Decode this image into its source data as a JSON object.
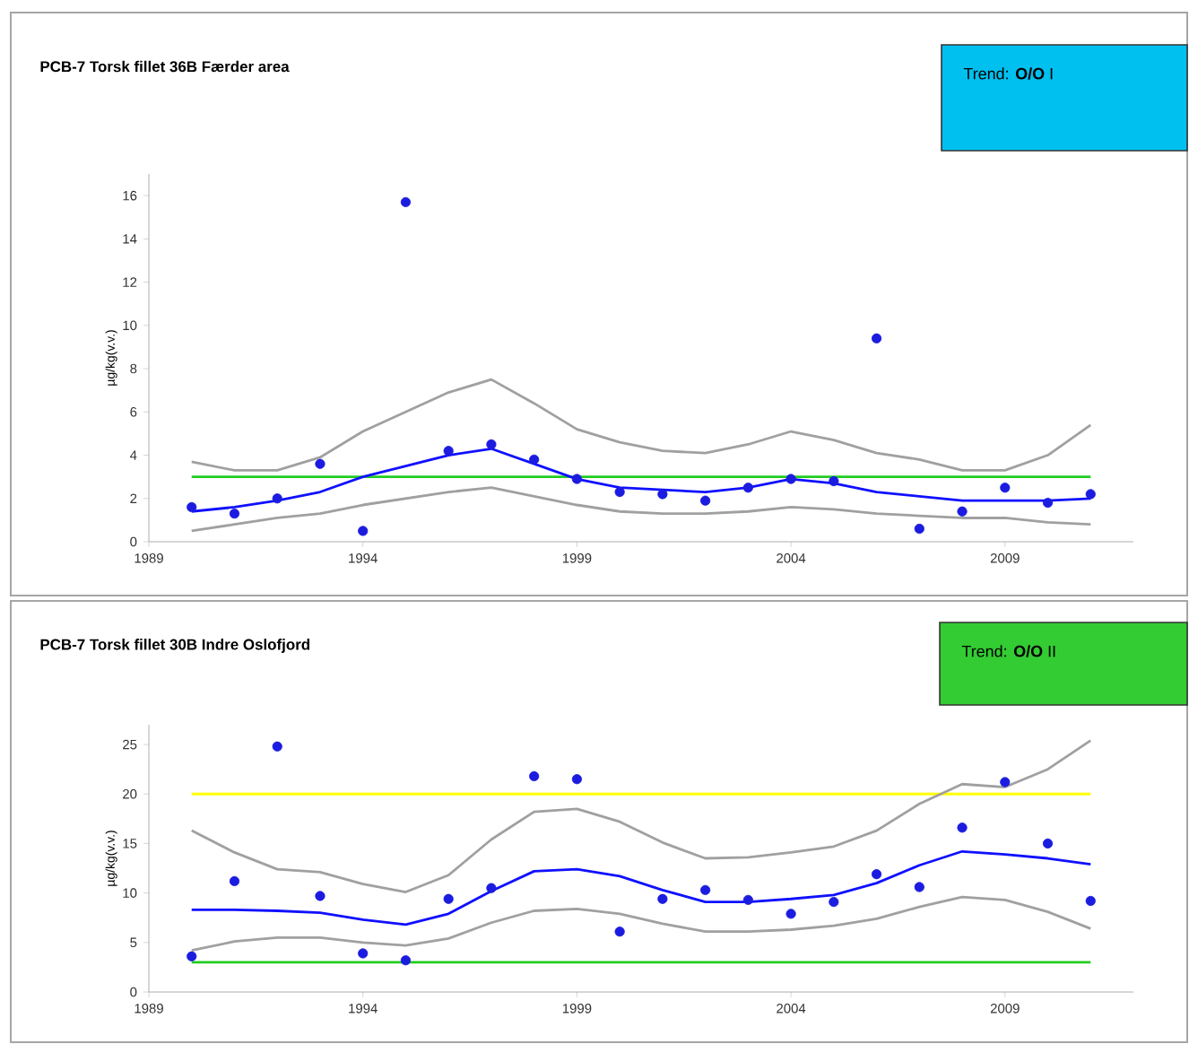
{
  "chart_data": [
    {
      "type": "line",
      "title": "PCB-7 Torsk fillet 36B Færder area",
      "ylabel": "µg/kg(v.v.)",
      "annotations": [
        "Trend: **O/O**  I"
      ],
      "x": [
        1990,
        1991,
        1992,
        1993,
        1994,
        1995,
        1996,
        1997,
        1998,
        1999,
        2000,
        2001,
        2002,
        2003,
        2004,
        2005,
        2006,
        2007,
        2008,
        2009,
        2010,
        2011
      ],
      "xlim": [
        1989,
        2012
      ],
      "xticks": [
        1989,
        1994,
        1999,
        2004,
        2009
      ],
      "ylim": [
        0,
        17
      ],
      "yticks": [
        0,
        2,
        4,
        6,
        8,
        10,
        12,
        14,
        16
      ],
      "grid": false,
      "ref_lines": [
        {
          "axis": "y",
          "value": 3,
          "color": "#22cc22"
        }
      ],
      "series": [
        {
          "color": "#a0a0a0",
          "values": [
            3.7,
            3.3,
            3.3,
            3.9,
            5.1,
            6.0,
            6.9,
            7.5,
            6.4,
            5.2,
            4.6,
            4.2,
            4.1,
            4.5,
            5.1,
            4.7,
            4.1,
            3.8,
            3.3,
            3.3,
            4.0,
            5.4
          ]
        },
        {
          "color": "#a0a0a0",
          "values": [
            0.5,
            0.8,
            1.1,
            1.3,
            1.7,
            2.0,
            2.3,
            2.5,
            2.1,
            1.7,
            1.4,
            1.3,
            1.3,
            1.4,
            1.6,
            1.5,
            1.3,
            1.2,
            1.1,
            1.1,
            0.9,
            0.8
          ]
        },
        {
          "color": "#1010ff",
          "values": [
            1.4,
            1.6,
            1.9,
            2.3,
            3.0,
            3.5,
            4.0,
            4.3,
            3.6,
            2.9,
            2.5,
            2.4,
            2.3,
            2.5,
            2.9,
            2.7,
            2.3,
            2.1,
            1.9,
            1.9,
            1.9,
            2.0
          ]
        },
        {
          "type": "scatter",
          "marker": "circle",
          "color": "#1c1ce0",
          "values": [
            1.6,
            1.3,
            2.0,
            3.6,
            0.5,
            15.7,
            4.2,
            4.5,
            3.8,
            2.9,
            2.3,
            2.2,
            1.9,
            2.5,
            2.9,
            2.8,
            9.4,
            0.6,
            1.4,
            2.5,
            1.8,
            2.2
          ]
        }
      ]
    },
    {
      "type": "line",
      "title": "PCB-7 Torsk fillet 30B Indre Oslofjord",
      "ylabel": "µg/kg(v.v.)",
      "annotations": [
        "Trend: **O/O**  II"
      ],
      "x": [
        1990,
        1991,
        1992,
        1993,
        1994,
        1995,
        1996,
        1997,
        1998,
        1999,
        2000,
        2001,
        2002,
        2003,
        2004,
        2005,
        2006,
        2007,
        2008,
        2009,
        2010,
        2011
      ],
      "xlim": [
        1989,
        2012
      ],
      "xticks": [
        1989,
        1994,
        1999,
        2004,
        2009
      ],
      "ylim": [
        0,
        27
      ],
      "yticks": [
        0,
        5,
        10,
        15,
        20,
        25
      ],
      "grid": false,
      "ref_lines": [
        {
          "axis": "y",
          "value": 20,
          "color": "#ffff00"
        },
        {
          "axis": "y",
          "value": 3,
          "color": "#22cc22"
        }
      ],
      "series": [
        {
          "color": "#a0a0a0",
          "values": [
            16.3,
            14.1,
            12.4,
            12.1,
            10.9,
            10.1,
            11.8,
            15.4,
            18.2,
            18.5,
            17.2,
            15.1,
            13.5,
            13.6,
            14.1,
            14.7,
            16.3,
            19.0,
            21.0,
            20.7,
            22.5,
            25.4
          ]
        },
        {
          "color": "#a0a0a0",
          "values": [
            4.2,
            5.1,
            5.5,
            5.5,
            5.0,
            4.7,
            5.4,
            7.0,
            8.2,
            8.4,
            7.9,
            6.9,
            6.1,
            6.1,
            6.3,
            6.7,
            7.4,
            8.6,
            9.6,
            9.3,
            8.1,
            6.4
          ]
        },
        {
          "color": "#1010ff",
          "values": [
            8.3,
            8.3,
            8.2,
            8.0,
            7.3,
            6.8,
            7.9,
            10.2,
            12.2,
            12.4,
            11.7,
            10.3,
            9.1,
            9.1,
            9.4,
            9.8,
            11.0,
            12.8,
            14.2,
            13.9,
            13.5,
            12.9
          ]
        },
        {
          "type": "scatter",
          "marker": "circle",
          "color": "#1c1ce0",
          "values": [
            3.6,
            11.2,
            24.8,
            9.7,
            3.9,
            3.2,
            9.4,
            10.5,
            21.8,
            21.5,
            6.1,
            9.4,
            10.3,
            9.3,
            7.9,
            9.1,
            11.9,
            10.6,
            16.6,
            21.2,
            15.0,
            9.2
          ]
        }
      ]
    }
  ]
}
